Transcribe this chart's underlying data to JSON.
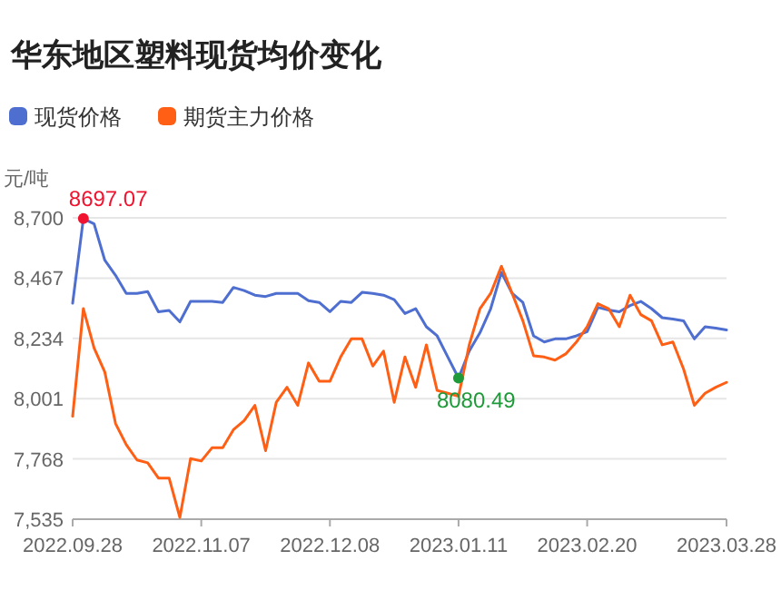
{
  "chart_data": {
    "type": "line",
    "title": "华东地区塑料现货均价变化",
    "ylabel": "元/吨",
    "categories": [
      "2022.09.28",
      null,
      null,
      null,
      null,
      null,
      null,
      null,
      null,
      null,
      null,
      null,
      "2022.11.07",
      null,
      null,
      null,
      null,
      null,
      null,
      null,
      null,
      null,
      null,
      null,
      "2022.12.08",
      null,
      null,
      null,
      null,
      null,
      null,
      null,
      null,
      null,
      null,
      null,
      "2023.01.11",
      null,
      null,
      null,
      null,
      null,
      null,
      null,
      null,
      null,
      null,
      null,
      "2023.02.20",
      null,
      null,
      null,
      null,
      null,
      null,
      null,
      null,
      null,
      null,
      null,
      null,
      "2023.03.28"
    ],
    "series": [
      {
        "name": "现货价格",
        "color": "#4e6ed0",
        "values": [
          8370,
          8697.07,
          8677,
          8536,
          8478,
          8408,
          8408,
          8415,
          8337,
          8342,
          8298,
          8377,
          8377,
          8377,
          8373,
          8431,
          8419,
          8401,
          8396,
          8408,
          8408,
          8408,
          8380,
          8373,
          8337,
          8377,
          8373,
          8412,
          8408,
          8401,
          8384,
          8330,
          8349,
          8279,
          8244,
          8162,
          8080.49,
          8185,
          8256,
          8349,
          8489,
          8408,
          8373,
          8244,
          8220,
          8232,
          8232,
          8244,
          8260,
          8354,
          8344,
          8337,
          8361,
          8377,
          8349,
          8314,
          8309,
          8302,
          8232,
          8279,
          8274,
          8267
        ]
      },
      {
        "name": "期货主力价格",
        "color": "#ff5f14",
        "values": [
          7933,
          8349,
          8197,
          8104,
          7905,
          7823,
          7764,
          7753,
          7694,
          7694,
          7542,
          7769,
          7760,
          7811,
          7811,
          7881,
          7916,
          7975,
          7800,
          7987,
          8045,
          7975,
          8139,
          8068,
          8068,
          8162,
          8232,
          8232,
          8127,
          8185,
          7987,
          8162,
          8045,
          8209,
          8033,
          8022,
          8010,
          8209,
          8349,
          8408,
          8513,
          8408,
          8302,
          8167,
          8162,
          8150,
          8174,
          8220,
          8279,
          8368,
          8349,
          8279,
          8401,
          8326,
          8302,
          8209,
          8220,
          8115,
          7975,
          8022,
          8045,
          8064
        ]
      },
      {
        "type": "scatter",
        "marker": "circle",
        "colors": [
          null,
          "#f0132f",
          null,
          null,
          null,
          null,
          null,
          null,
          null,
          null,
          null,
          null,
          null,
          null,
          null,
          null,
          null,
          null,
          null,
          null,
          null,
          null,
          null,
          null,
          null,
          null,
          null,
          null,
          null,
          null,
          null,
          null,
          null,
          null,
          null,
          null,
          "#1f9a3a",
          null,
          null,
          null,
          null,
          null,
          null,
          null,
          null,
          null,
          null,
          null,
          null,
          null,
          null,
          null,
          null,
          null,
          null,
          null,
          null,
          null,
          null,
          null,
          null,
          null
        ],
        "values": [
          null,
          8697.07,
          null,
          null,
          null,
          null,
          null,
          null,
          null,
          null,
          null,
          null,
          null,
          null,
          null,
          null,
          null,
          null,
          null,
          null,
          null,
          null,
          null,
          null,
          null,
          null,
          null,
          null,
          null,
          null,
          null,
          null,
          null,
          null,
          null,
          null,
          8080.49,
          null,
          null,
          null,
          null,
          null,
          null,
          null,
          null,
          null,
          null,
          null,
          null,
          null,
          null,
          null,
          null,
          null,
          null,
          null,
          null,
          null,
          null,
          null,
          null,
          null
        ]
      }
    ],
    "ylim": [
      7535,
      8700
    ],
    "yticks": [
      {
        "value": 7535,
        "label": "7,535"
      },
      {
        "value": 7768,
        "label": "7,768"
      },
      {
        "value": 8001,
        "label": "8,001"
      },
      {
        "value": 8234,
        "label": "8,234"
      },
      {
        "value": 8467,
        "label": "8,467"
      },
      {
        "value": 8700,
        "label": "8,700"
      }
    ],
    "annotations": [
      "8697.07",
      "8080.49"
    ],
    "grid": "y",
    "legend": "top left",
    "marker": "none",
    "line_style": "solid"
  }
}
